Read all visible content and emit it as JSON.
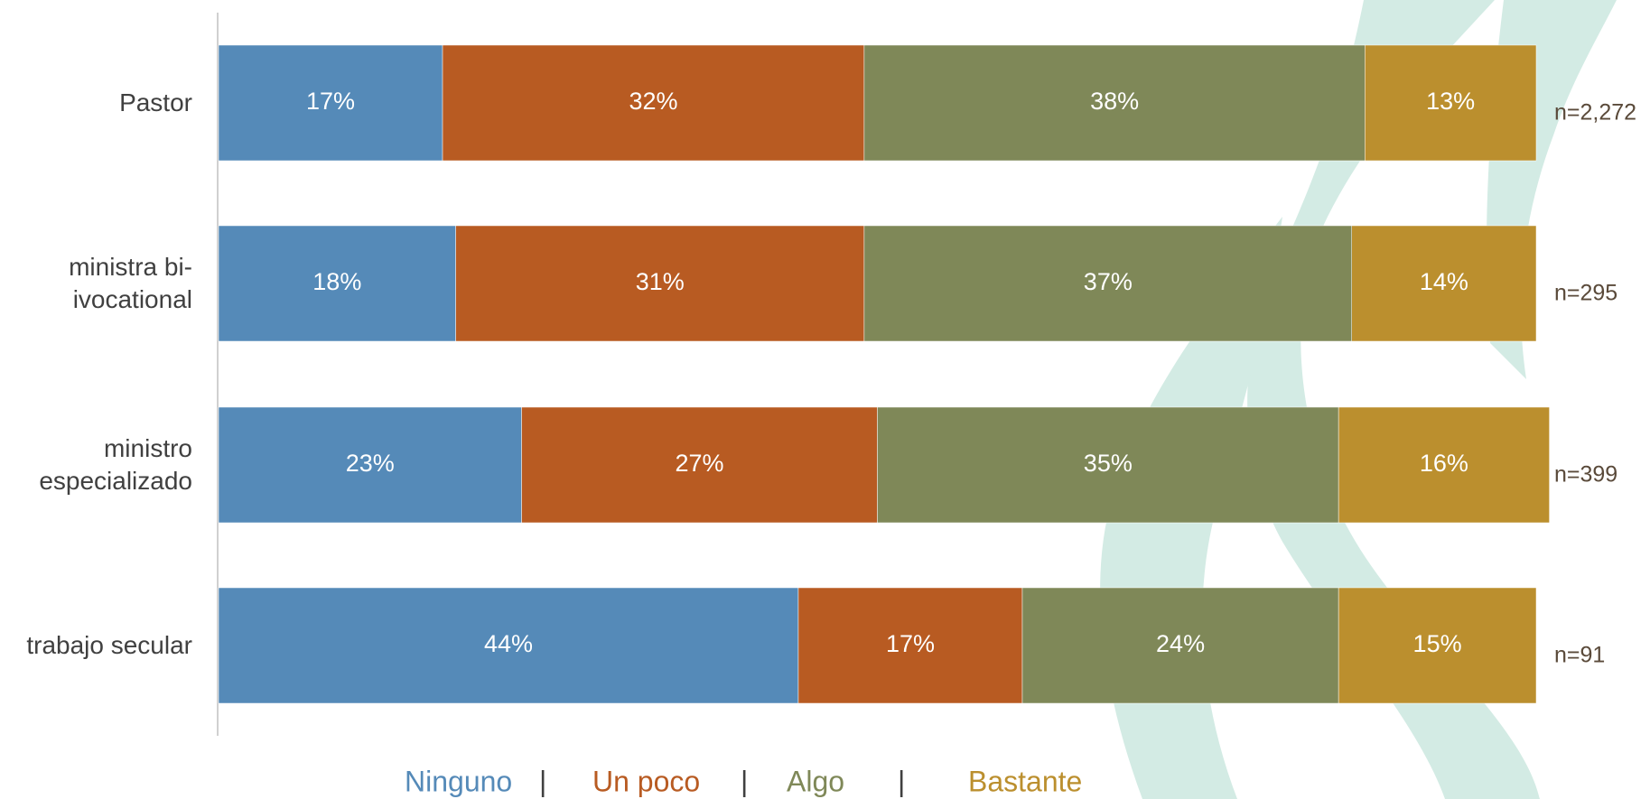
{
  "chart_data": {
    "type": "stacked_barh",
    "categories": [
      "Pastor",
      "ministra bi-ivocational",
      "ministro especializado",
      "trabajo secular"
    ],
    "series": [
      {
        "name": "Ninguno",
        "color": "#558ab8",
        "values": [
          17,
          18,
          23,
          44
        ],
        "value_labels": [
          "17%",
          "18%",
          "23%",
          "44%"
        ]
      },
      {
        "name": "Un poco",
        "color": "#b85b22",
        "values": [
          32,
          31,
          27,
          17
        ],
        "value_labels": [
          "32%",
          "31%",
          "27%",
          "17%"
        ]
      },
      {
        "name": "Algo",
        "color": "#7f8858",
        "values": [
          38,
          37,
          35,
          24
        ],
        "value_labels": [
          "38%",
          "37%",
          "35%",
          "24%"
        ]
      },
      {
        "name": "Bastante",
        "color": "#bb8f2e",
        "values": [
          13,
          14,
          16,
          15
        ],
        "value_labels": [
          "13%",
          "14%",
          "16%",
          "15%"
        ]
      }
    ],
    "annotations": [
      "n=2,272",
      "n=295",
      "n=399",
      "n=91"
    ],
    "legend_separator": "|",
    "xlim": [
      0,
      100
    ]
  }
}
